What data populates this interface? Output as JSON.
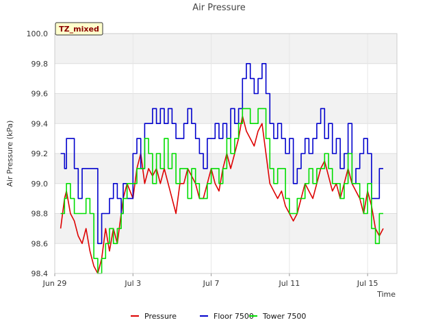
{
  "chart_data": {
    "type": "line",
    "title": "Air Pressure",
    "xlabel": "Time",
    "ylabel": "Air Pressure (kPa)",
    "badge": "TZ_mixed",
    "xlim": [
      0,
      17.5
    ],
    "ylim": [
      98.4,
      100.0
    ],
    "yticks": [
      98.4,
      98.6,
      98.8,
      99.0,
      99.2,
      99.4,
      99.6,
      99.8,
      100.0
    ],
    "ytick_labels": [
      "98.4",
      "98.6",
      "98.8",
      "99.0",
      "99.2",
      "99.4",
      "99.6",
      "99.8",
      "100.0"
    ],
    "xticks": [
      0,
      4,
      8,
      12,
      16
    ],
    "xtick_labels": [
      "Jun 29",
      "Jul 3",
      "Jul 7",
      "Jul 11",
      "Jul 15"
    ],
    "grid": true,
    "legend_position": "bottom-center",
    "series": [
      {
        "name": "Pressure",
        "color": "#dd0000",
        "x": [
          0.3,
          0.5,
          0.6,
          0.8,
          1.0,
          1.2,
          1.4,
          1.6,
          1.8,
          2.0,
          2.2,
          2.4,
          2.6,
          2.8,
          3.0,
          3.2,
          3.4,
          3.5,
          3.7,
          4.0,
          4.2,
          4.4,
          4.6,
          4.8,
          5.0,
          5.2,
          5.4,
          5.6,
          5.8,
          6.0,
          6.2,
          6.4,
          6.6,
          6.8,
          7.0,
          7.2,
          7.4,
          7.6,
          7.8,
          8.0,
          8.2,
          8.4,
          8.6,
          8.8,
          9.0,
          9.2,
          9.4,
          9.6,
          9.8,
          10.0,
          10.2,
          10.4,
          10.6,
          10.8,
          11.0,
          11.2,
          11.4,
          11.6,
          11.8,
          12.0,
          12.2,
          12.4,
          12.6,
          12.8,
          13.0,
          13.2,
          13.4,
          13.6,
          13.8,
          14.0,
          14.2,
          14.4,
          14.6,
          14.8,
          15.0,
          15.2,
          15.4,
          15.6,
          15.8,
          16.0,
          16.2,
          16.4,
          16.6,
          16.8
        ],
        "values": [
          98.7,
          98.9,
          98.95,
          98.8,
          98.75,
          98.65,
          98.6,
          98.7,
          98.55,
          98.45,
          98.4,
          98.5,
          98.7,
          98.55,
          98.7,
          98.6,
          98.8,
          98.9,
          99.0,
          98.9,
          99.1,
          99.2,
          99.0,
          99.1,
          99.05,
          99.1,
          99.0,
          99.1,
          99.0,
          98.9,
          98.8,
          99.0,
          99.0,
          99.1,
          99.05,
          99.0,
          98.9,
          98.9,
          99.0,
          99.1,
          99.0,
          98.95,
          99.1,
          99.2,
          99.1,
          99.2,
          99.3,
          99.45,
          99.35,
          99.3,
          99.25,
          99.35,
          99.4,
          99.2,
          99.0,
          98.95,
          98.9,
          98.95,
          98.85,
          98.8,
          98.75,
          98.8,
          98.9,
          99.0,
          98.95,
          98.9,
          99.0,
          99.1,
          99.15,
          99.05,
          98.95,
          99.0,
          98.9,
          99.0,
          99.1,
          99.0,
          98.95,
          98.9,
          98.8,
          98.95,
          98.85,
          98.7,
          98.65,
          98.7
        ]
      },
      {
        "name": "Floor 7500",
        "color": "#0000cc",
        "x": [
          0.3,
          0.5,
          0.6,
          0.8,
          1.0,
          1.2,
          1.4,
          1.6,
          1.8,
          2.0,
          2.2,
          2.4,
          2.6,
          2.8,
          3.0,
          3.2,
          3.4,
          3.5,
          3.7,
          4.0,
          4.2,
          4.4,
          4.6,
          4.8,
          5.0,
          5.2,
          5.4,
          5.6,
          5.8,
          6.0,
          6.2,
          6.4,
          6.6,
          6.8,
          7.0,
          7.2,
          7.4,
          7.6,
          7.8,
          8.0,
          8.2,
          8.4,
          8.6,
          8.8,
          9.0,
          9.2,
          9.4,
          9.6,
          9.8,
          10.0,
          10.2,
          10.4,
          10.6,
          10.8,
          11.0,
          11.2,
          11.4,
          11.6,
          11.8,
          12.0,
          12.2,
          12.4,
          12.6,
          12.8,
          13.0,
          13.2,
          13.4,
          13.6,
          13.8,
          14.0,
          14.2,
          14.4,
          14.6,
          14.8,
          15.0,
          15.2,
          15.4,
          15.6,
          15.8,
          16.0,
          16.2,
          16.4,
          16.6,
          16.8
        ],
        "values": [
          99.2,
          99.1,
          99.3,
          99.3,
          99.1,
          98.9,
          99.1,
          99.1,
          99.1,
          99.1,
          98.6,
          98.8,
          98.8,
          98.9,
          99.0,
          98.9,
          98.8,
          99.0,
          98.9,
          99.2,
          99.3,
          99.1,
          99.4,
          99.4,
          99.5,
          99.4,
          99.5,
          99.4,
          99.5,
          99.4,
          99.3,
          99.3,
          99.4,
          99.5,
          99.4,
          99.3,
          99.2,
          99.1,
          99.3,
          99.3,
          99.4,
          99.3,
          99.4,
          99.3,
          99.5,
          99.4,
          99.5,
          99.7,
          99.8,
          99.7,
          99.6,
          99.7,
          99.8,
          99.6,
          99.4,
          99.3,
          99.4,
          99.3,
          99.2,
          99.3,
          99.0,
          99.1,
          99.2,
          99.3,
          99.2,
          99.3,
          99.4,
          99.5,
          99.3,
          99.4,
          99.2,
          99.3,
          99.1,
          99.2,
          99.4,
          99.0,
          99.1,
          99.2,
          99.3,
          99.2,
          98.9,
          98.9,
          99.1,
          99.1
        ],
        "step": true
      },
      {
        "name": "Tower 7500",
        "color": "#00dd00",
        "x": [
          0.3,
          0.5,
          0.6,
          0.8,
          1.0,
          1.2,
          1.4,
          1.6,
          1.8,
          2.0,
          2.2,
          2.4,
          2.6,
          2.8,
          3.0,
          3.2,
          3.4,
          3.5,
          3.7,
          4.0,
          4.2,
          4.4,
          4.6,
          4.8,
          5.0,
          5.2,
          5.4,
          5.6,
          5.8,
          6.0,
          6.2,
          6.4,
          6.6,
          6.8,
          7.0,
          7.2,
          7.4,
          7.6,
          7.8,
          8.0,
          8.2,
          8.4,
          8.6,
          8.8,
          9.0,
          9.2,
          9.4,
          9.6,
          9.8,
          10.0,
          10.2,
          10.4,
          10.6,
          10.8,
          11.0,
          11.2,
          11.4,
          11.6,
          11.8,
          12.0,
          12.2,
          12.4,
          12.6,
          12.8,
          13.0,
          13.2,
          13.4,
          13.6,
          13.8,
          14.0,
          14.2,
          14.4,
          14.6,
          14.8,
          15.0,
          15.2,
          15.4,
          15.6,
          15.8,
          16.0,
          16.2,
          16.4,
          16.6,
          16.8
        ],
        "values": [
          98.8,
          98.9,
          99.0,
          98.9,
          98.8,
          98.8,
          98.8,
          98.9,
          98.8,
          98.5,
          98.4,
          98.5,
          98.6,
          98.7,
          98.6,
          98.7,
          98.8,
          98.9,
          99.0,
          99.0,
          99.1,
          99.1,
          99.3,
          99.2,
          99.0,
          99.2,
          99.1,
          99.3,
          99.1,
          99.2,
          99.0,
          99.1,
          99.1,
          98.9,
          99.1,
          99.0,
          98.9,
          98.9,
          99.0,
          99.1,
          99.1,
          99.0,
          99.1,
          99.3,
          99.2,
          99.3,
          99.4,
          99.5,
          99.5,
          99.4,
          99.4,
          99.5,
          99.5,
          99.3,
          99.1,
          99.0,
          99.1,
          99.1,
          98.9,
          98.8,
          98.8,
          98.9,
          98.9,
          99.0,
          99.1,
          99.0,
          99.1,
          99.1,
          99.2,
          99.1,
          99.0,
          99.0,
          98.9,
          99.0,
          99.2,
          99.0,
          99.0,
          98.9,
          98.8,
          99.0,
          98.7,
          98.6,
          98.8,
          98.8
        ],
        "step": true
      }
    ]
  }
}
